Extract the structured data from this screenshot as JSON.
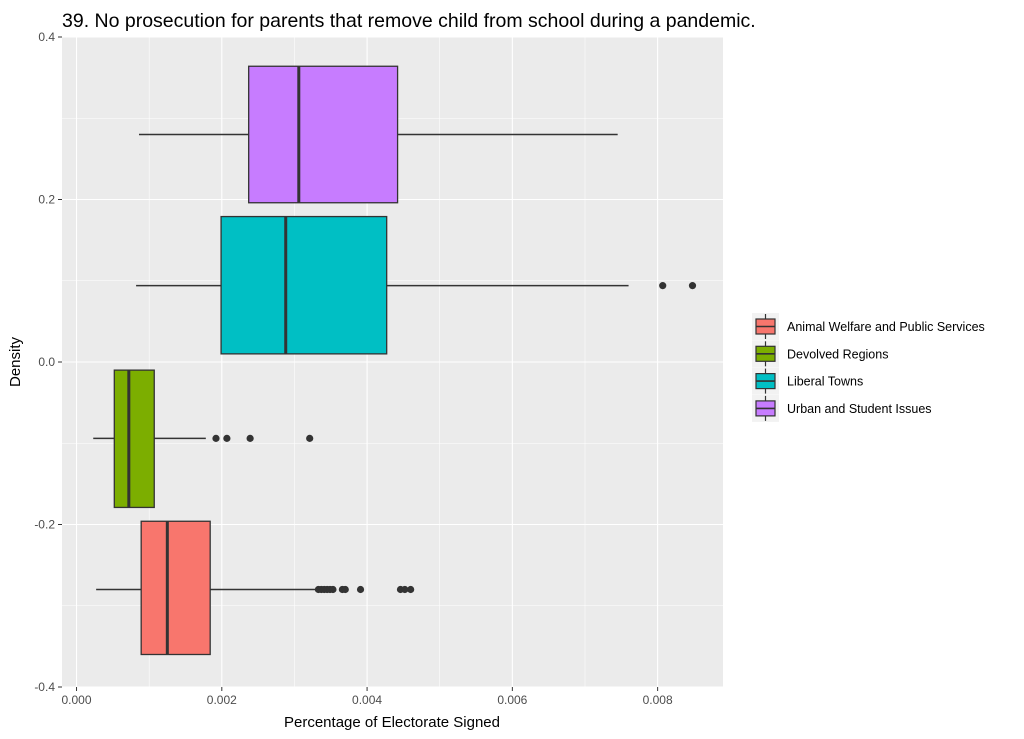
{
  "chart_data": {
    "type": "boxplot",
    "orientation": "horizontal",
    "title": "39. No prosecution for parents that remove child from school during a pandemic.",
    "xlabel": "Percentage of Electorate Signed",
    "ylabel": "Density",
    "xlim": [
      -0.0002,
      0.0089
    ],
    "ylim": [
      -0.4,
      0.4
    ],
    "x_ticks": [
      0,
      0.002,
      0.004,
      0.006,
      0.008
    ],
    "x_tick_labels": [
      "0.000",
      "0.002",
      "0.004",
      "0.006",
      "0.008"
    ],
    "y_ticks": [
      -0.4,
      -0.2,
      0.0,
      0.2,
      0.4
    ],
    "y_tick_labels": [
      "-0.4",
      "-0.2",
      "0.0",
      "0.2",
      "0.4"
    ],
    "grid": true,
    "legend_position": "right",
    "series": [
      {
        "name": "Animal Welfare and Public Services",
        "color": "#F8766D",
        "y_center": -0.28,
        "box_range": [
          -0.36,
          -0.196
        ],
        "whisker_low": 0.00027,
        "q1": 0.00089,
        "median": 0.00125,
        "q3": 0.00184,
        "whisker_high": 0.0033,
        "outliers": [
          0.00333,
          0.00337,
          0.00341,
          0.00345,
          0.00349,
          0.00353,
          0.00366,
          0.0037,
          0.00391,
          0.00446,
          0.00452,
          0.0046
        ]
      },
      {
        "name": "Devolved Regions",
        "color": "#7CAE00",
        "y_center": -0.094,
        "box_range": [
          -0.179,
          -0.01
        ],
        "whisker_low": 0.00023,
        "q1": 0.00052,
        "median": 0.00072,
        "q3": 0.00107,
        "whisker_high": 0.00178,
        "outliers": [
          0.00192,
          0.00207,
          0.00239,
          0.00321
        ]
      },
      {
        "name": "Liberal Towns",
        "color": "#00BFC4",
        "y_center": 0.094,
        "box_range": [
          0.01,
          0.179
        ],
        "whisker_low": 0.00082,
        "q1": 0.00199,
        "median": 0.00288,
        "q3": 0.00427,
        "whisker_high": 0.0076,
        "outliers": [
          0.00807,
          0.00848
        ]
      },
      {
        "name": "Urban and Student Issues",
        "color": "#C77CFF",
        "y_center": 0.28,
        "box_range": [
          0.196,
          0.364
        ],
        "whisker_low": 0.00086,
        "q1": 0.00237,
        "median": 0.00306,
        "q3": 0.00442,
        "whisker_high": 0.00745,
        "outliers": []
      }
    ]
  }
}
